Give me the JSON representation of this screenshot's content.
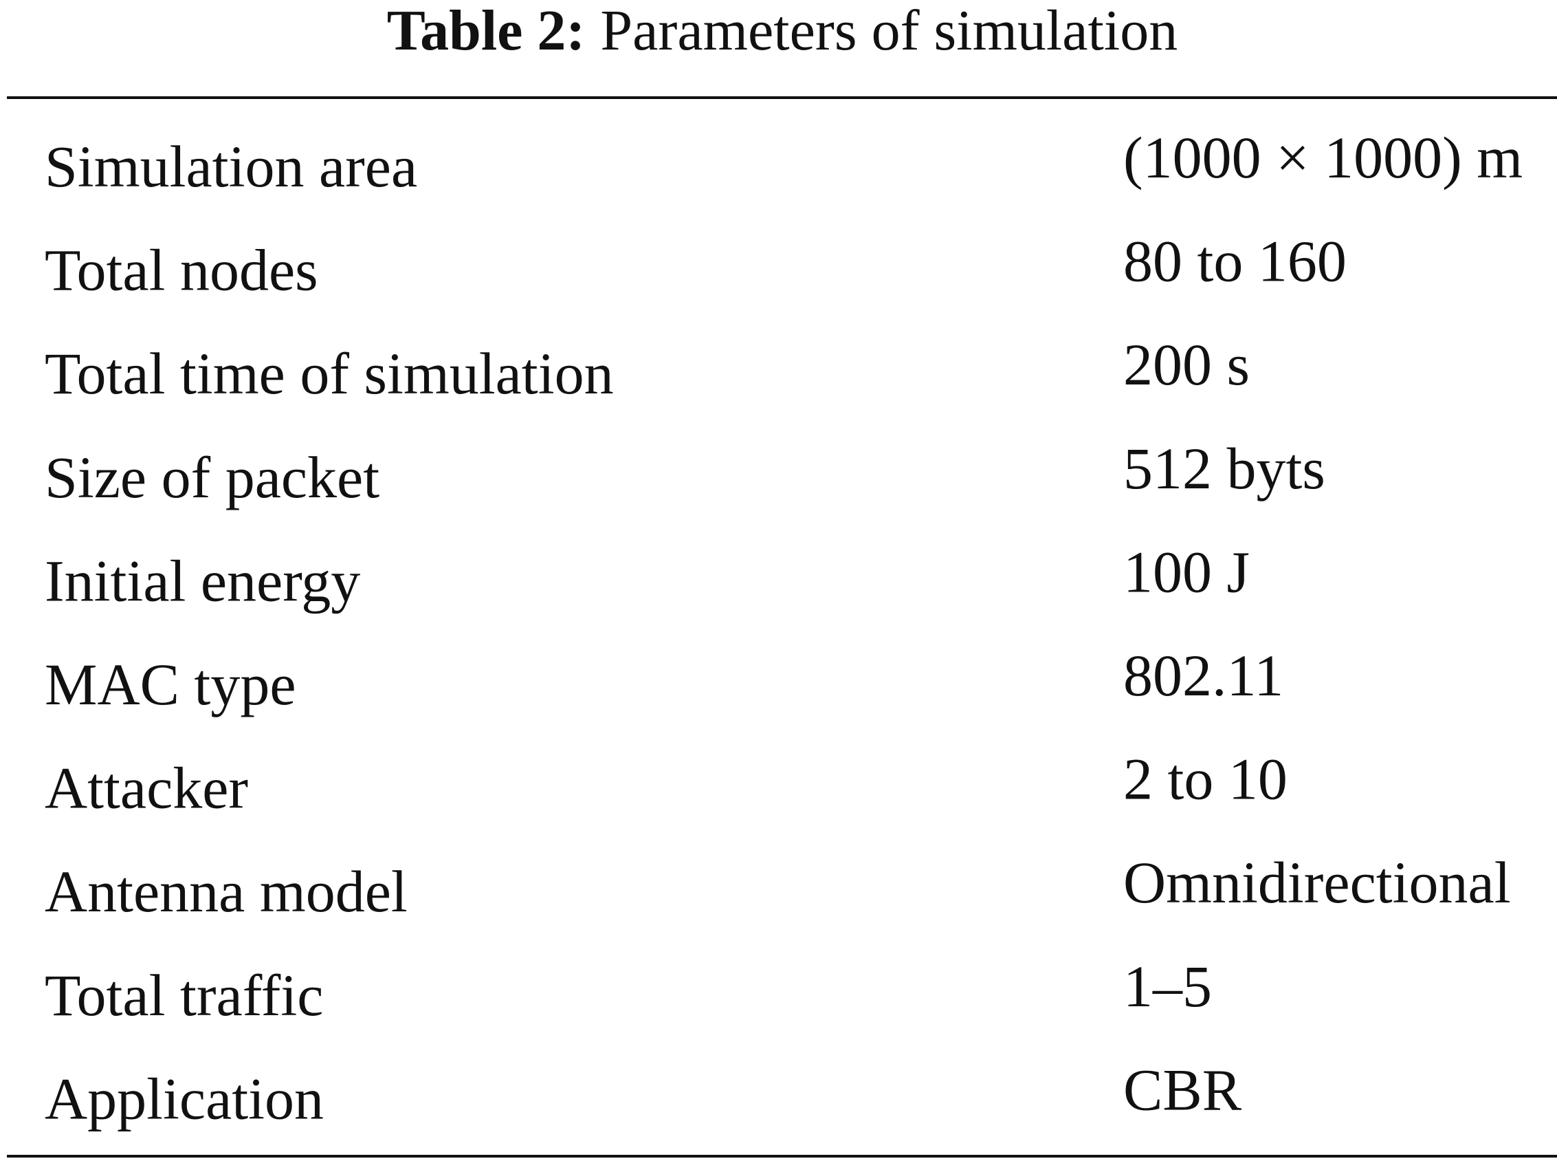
{
  "caption": {
    "label": "Table 2:",
    "text": "Parameters of simulation"
  },
  "table": {
    "rows": [
      [
        "Simulation area",
        "(1000 × 1000) m"
      ],
      [
        "Total nodes",
        "80 to 160"
      ],
      [
        "Total time of simulation",
        "200 s"
      ],
      [
        "Size of packet",
        "512 byts"
      ],
      [
        "Initial energy",
        "100 J"
      ],
      [
        "MAC type",
        "802.11"
      ],
      [
        "Attacker",
        "2 to 10"
      ],
      [
        "Antenna model",
        "Omnidirectional"
      ],
      [
        "Total traffic",
        "1–5"
      ],
      [
        "Application",
        "CBR"
      ]
    ]
  }
}
